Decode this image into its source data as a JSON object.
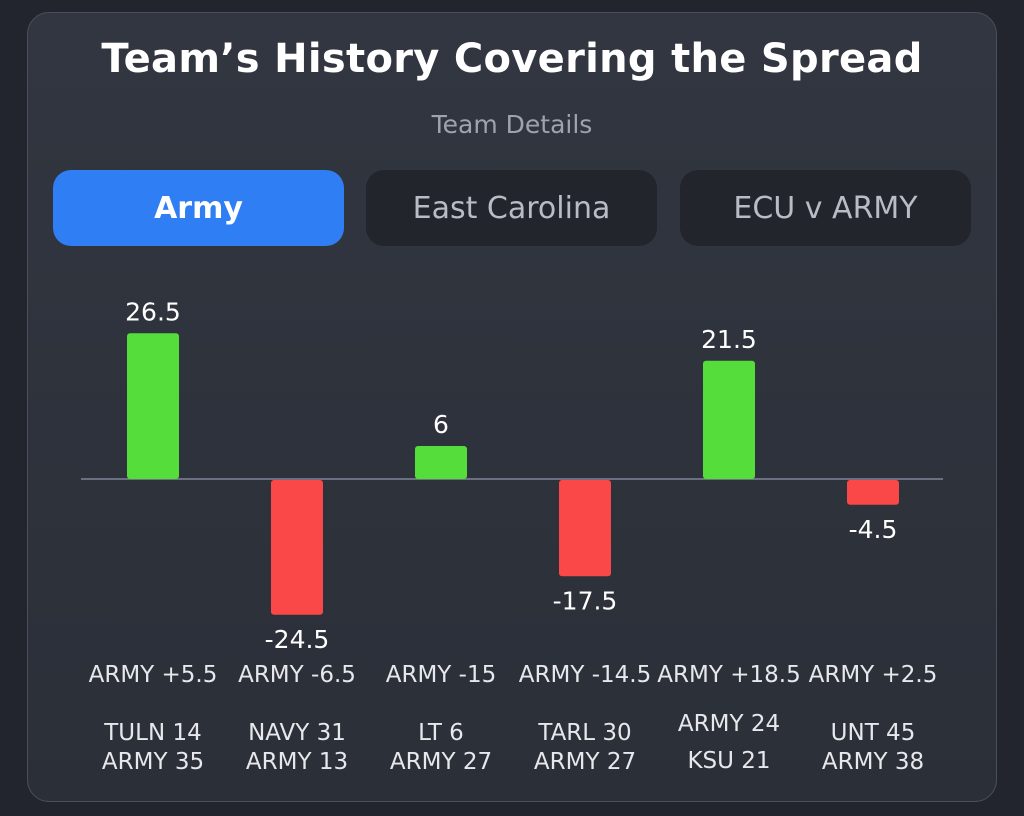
{
  "header": {
    "title": "Team’s History Covering the Spread",
    "subtitle": "Team Details"
  },
  "tabs": [
    {
      "label": "Army",
      "active": true
    },
    {
      "label": "East Carolina",
      "active": false
    },
    {
      "label": "ECU v ARMY",
      "active": false
    }
  ],
  "colors": {
    "positive": "#55dd3c",
    "negative": "#fa4848",
    "baseline": "#6b7080"
  },
  "chart_data": {
    "type": "bar",
    "categories": [
      [
        "ARMY +5.5",
        "TULN 14",
        "ARMY 35"
      ],
      [
        "ARMY -6.5",
        "NAVY 31",
        "ARMY 13"
      ],
      [
        "ARMY -15",
        "LT 6",
        "ARMY 27"
      ],
      [
        "ARMY -14.5",
        "TARL 30",
        "ARMY 27"
      ],
      [
        "ARMY +18.5",
        "ARMY 24",
        "KSU 21"
      ],
      [
        "ARMY +2.5",
        "UNT 45",
        "ARMY 38"
      ]
    ],
    "values": [
      26.5,
      -24.5,
      6,
      -17.5,
      21.5,
      -4.5
    ],
    "value_labels": [
      "26.5",
      "-24.5",
      "6",
      "-17.5",
      "21.5",
      "-4.5"
    ],
    "ylim": [
      -25,
      27
    ],
    "grid": false,
    "legend": "none"
  }
}
